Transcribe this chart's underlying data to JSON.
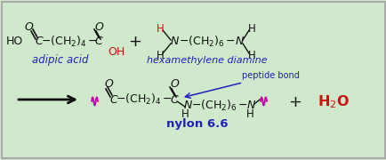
{
  "bg_color": "#d0e8cc",
  "border_color": "#aaaaaa",
  "black": "#111111",
  "blue": "#2020bb",
  "red": "#cc1111",
  "magenta": "#cc00aa",
  "figsize": [
    4.35,
    1.8
  ],
  "dpi": 100,
  "adipic_label": "adipic acid",
  "hexamine_label": "hexamethylene diamine",
  "nylon_label": "nylon 6.6",
  "peptide_label": "peptide bond"
}
